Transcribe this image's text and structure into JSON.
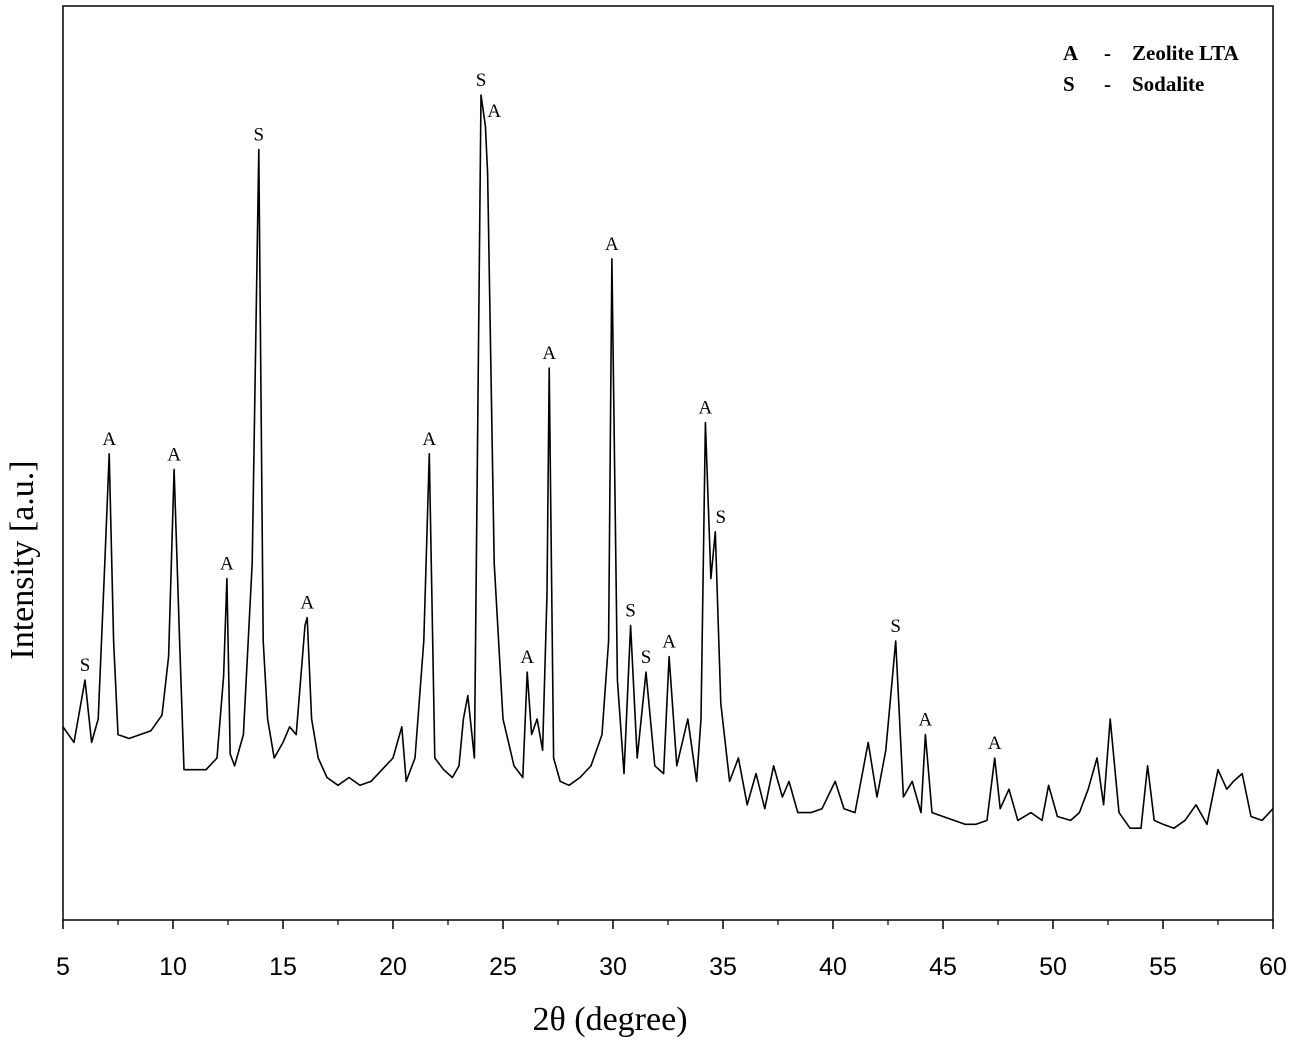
{
  "chart_data": {
    "type": "line",
    "xlabel": "2θ  (degree)",
    "ylabel": "Intensity [a.u.]",
    "xlim": [
      5,
      60
    ],
    "ylim": [
      0,
      100
    ],
    "xticks": [
      5,
      10,
      15,
      20,
      25,
      30,
      35,
      40,
      45,
      50,
      55,
      60
    ],
    "show_y_ticks": false,
    "grid": false,
    "legend_position": "top-right",
    "legend": [
      {
        "symbol": "A",
        "dash": "-",
        "label": "Zeolite LTA"
      },
      {
        "symbol": "S",
        "dash": "-",
        "label": "Sodalite"
      }
    ],
    "series": [
      {
        "x": [
          5.0,
          5.5,
          6.0,
          6.3,
          6.6,
          6.9,
          7.1,
          7.3,
          7.5,
          8.0,
          8.5,
          9.0,
          9.5,
          9.8,
          10.05,
          10.3,
          10.5,
          11.0,
          11.5,
          12.0,
          12.3,
          12.45,
          12.6,
          12.8,
          13.2,
          13.6,
          13.9,
          14.1,
          14.3,
          14.6,
          15.0,
          15.3,
          15.6,
          16.0,
          16.1,
          16.3,
          16.6,
          17.0,
          17.5,
          18.0,
          18.5,
          19.0,
          19.5,
          20.0,
          20.4,
          20.6,
          21.0,
          21.4,
          21.65,
          21.9,
          22.3,
          22.7,
          23.0,
          23.2,
          23.4,
          23.7,
          24.0,
          24.2,
          24.3,
          24.6,
          25.0,
          25.5,
          25.9,
          26.1,
          26.3,
          26.55,
          26.8,
          27.0,
          27.1,
          27.3,
          27.6,
          28.0,
          28.5,
          29.0,
          29.5,
          29.8,
          29.95,
          30.2,
          30.5,
          30.8,
          31.1,
          31.5,
          31.9,
          32.3,
          32.55,
          32.9,
          33.4,
          33.8,
          34.0,
          34.2,
          34.45,
          34.65,
          34.9,
          35.3,
          35.7,
          36.1,
          36.5,
          36.9,
          37.3,
          37.7,
          38.0,
          38.4,
          39.0,
          39.5,
          40.1,
          40.5,
          41.0,
          41.6,
          42.0,
          42.4,
          42.85,
          43.2,
          43.6,
          44.0,
          44.2,
          44.5,
          45.0,
          45.5,
          46.0,
          46.5,
          47.0,
          47.35,
          47.6,
          48.0,
          48.4,
          49.0,
          49.5,
          49.8,
          50.2,
          50.8,
          51.2,
          51.6,
          52.0,
          52.3,
          52.6,
          53.0,
          53.5,
          54.0,
          54.3,
          54.6,
          55.0,
          55.5,
          56.0,
          56.5,
          57.0,
          57.5,
          57.9,
          58.2,
          58.6,
          59.0,
          59.5,
          60.0
        ],
        "y": [
          19.0,
          17.0,
          25.0,
          17.0,
          20.0,
          40.0,
          54.0,
          30.0,
          18.0,
          17.5,
          18.0,
          18.5,
          20.5,
          28.0,
          52.0,
          30.0,
          13.5,
          13.5,
          13.5,
          15.0,
          25.5,
          38.0,
          15.5,
          14.0,
          18.0,
          40.0,
          93.0,
          30.0,
          20.0,
          15.0,
          17.0,
          19.0,
          18.0,
          32.0,
          33.0,
          20.0,
          15.0,
          12.5,
          11.5,
          12.5,
          11.5,
          12.0,
          13.5,
          15.0,
          19.0,
          12.0,
          15.0,
          30.0,
          54.0,
          15.0,
          13.5,
          12.5,
          14.0,
          20.0,
          23.0,
          15.0,
          100.0,
          96.0,
          90.0,
          40.0,
          20.0,
          14.0,
          12.5,
          26.0,
          18.0,
          20.0,
          16.0,
          36.0,
          65.0,
          15.0,
          12.0,
          11.5,
          12.5,
          14.0,
          18.0,
          30.0,
          79.0,
          25.0,
          13.0,
          32.0,
          15.0,
          26.0,
          14.0,
          13.0,
          28.0,
          14.0,
          20.0,
          12.0,
          20.0,
          58.0,
          38.0,
          44.0,
          22.0,
          12.0,
          15.0,
          9.0,
          13.0,
          8.5,
          14.0,
          10.0,
          12.0,
          8.0,
          8.0,
          8.5,
          12.0,
          8.5,
          8.0,
          17.0,
          10.0,
          16.0,
          30.0,
          10.0,
          12.0,
          8.0,
          18.0,
          8.0,
          7.5,
          7.0,
          6.5,
          6.5,
          7.0,
          15.0,
          8.5,
          11.0,
          7.0,
          8.0,
          7.0,
          11.5,
          7.5,
          7.0,
          8.0,
          11.0,
          15.0,
          9.0,
          20.0,
          8.0,
          6.0,
          6.0,
          14.0,
          7.0,
          6.5,
          6.0,
          7.0,
          9.0,
          6.5,
          13.5,
          11.0,
          12.0,
          13.0,
          7.5,
          7.0,
          8.5
        ]
      }
    ],
    "annotations": [
      {
        "text": "S",
        "x": 6.0,
        "y": 25.0
      },
      {
        "text": "A",
        "x": 7.1,
        "y": 54.0
      },
      {
        "text": "A",
        "x": 10.05,
        "y": 52.0
      },
      {
        "text": "A",
        "x": 12.45,
        "y": 38.0
      },
      {
        "text": "S",
        "x": 13.9,
        "y": 93.0
      },
      {
        "text": "A",
        "x": 16.1,
        "y": 33.0
      },
      {
        "text": "A",
        "x": 21.65,
        "y": 54.0
      },
      {
        "text": "S",
        "x": 24.0,
        "y": 100.0
      },
      {
        "text": "A",
        "x": 24.6,
        "y": 96.0
      },
      {
        "text": "A",
        "x": 26.1,
        "y": 26.0
      },
      {
        "text": "A",
        "x": 27.1,
        "y": 65.0
      },
      {
        "text": "A",
        "x": 29.95,
        "y": 79.0
      },
      {
        "text": "S",
        "x": 30.8,
        "y": 32.0
      },
      {
        "text": "S",
        "x": 31.5,
        "y": 26.0
      },
      {
        "text": "A",
        "x": 32.55,
        "y": 28.0
      },
      {
        "text": "A",
        "x": 34.2,
        "y": 58.0
      },
      {
        "text": "S",
        "x": 34.9,
        "y": 44.0
      },
      {
        "text": "S",
        "x": 42.85,
        "y": 30.0
      },
      {
        "text": "A",
        "x": 44.2,
        "y": 18.0
      },
      {
        "text": "A",
        "x": 47.35,
        "y": 15.0
      }
    ]
  }
}
